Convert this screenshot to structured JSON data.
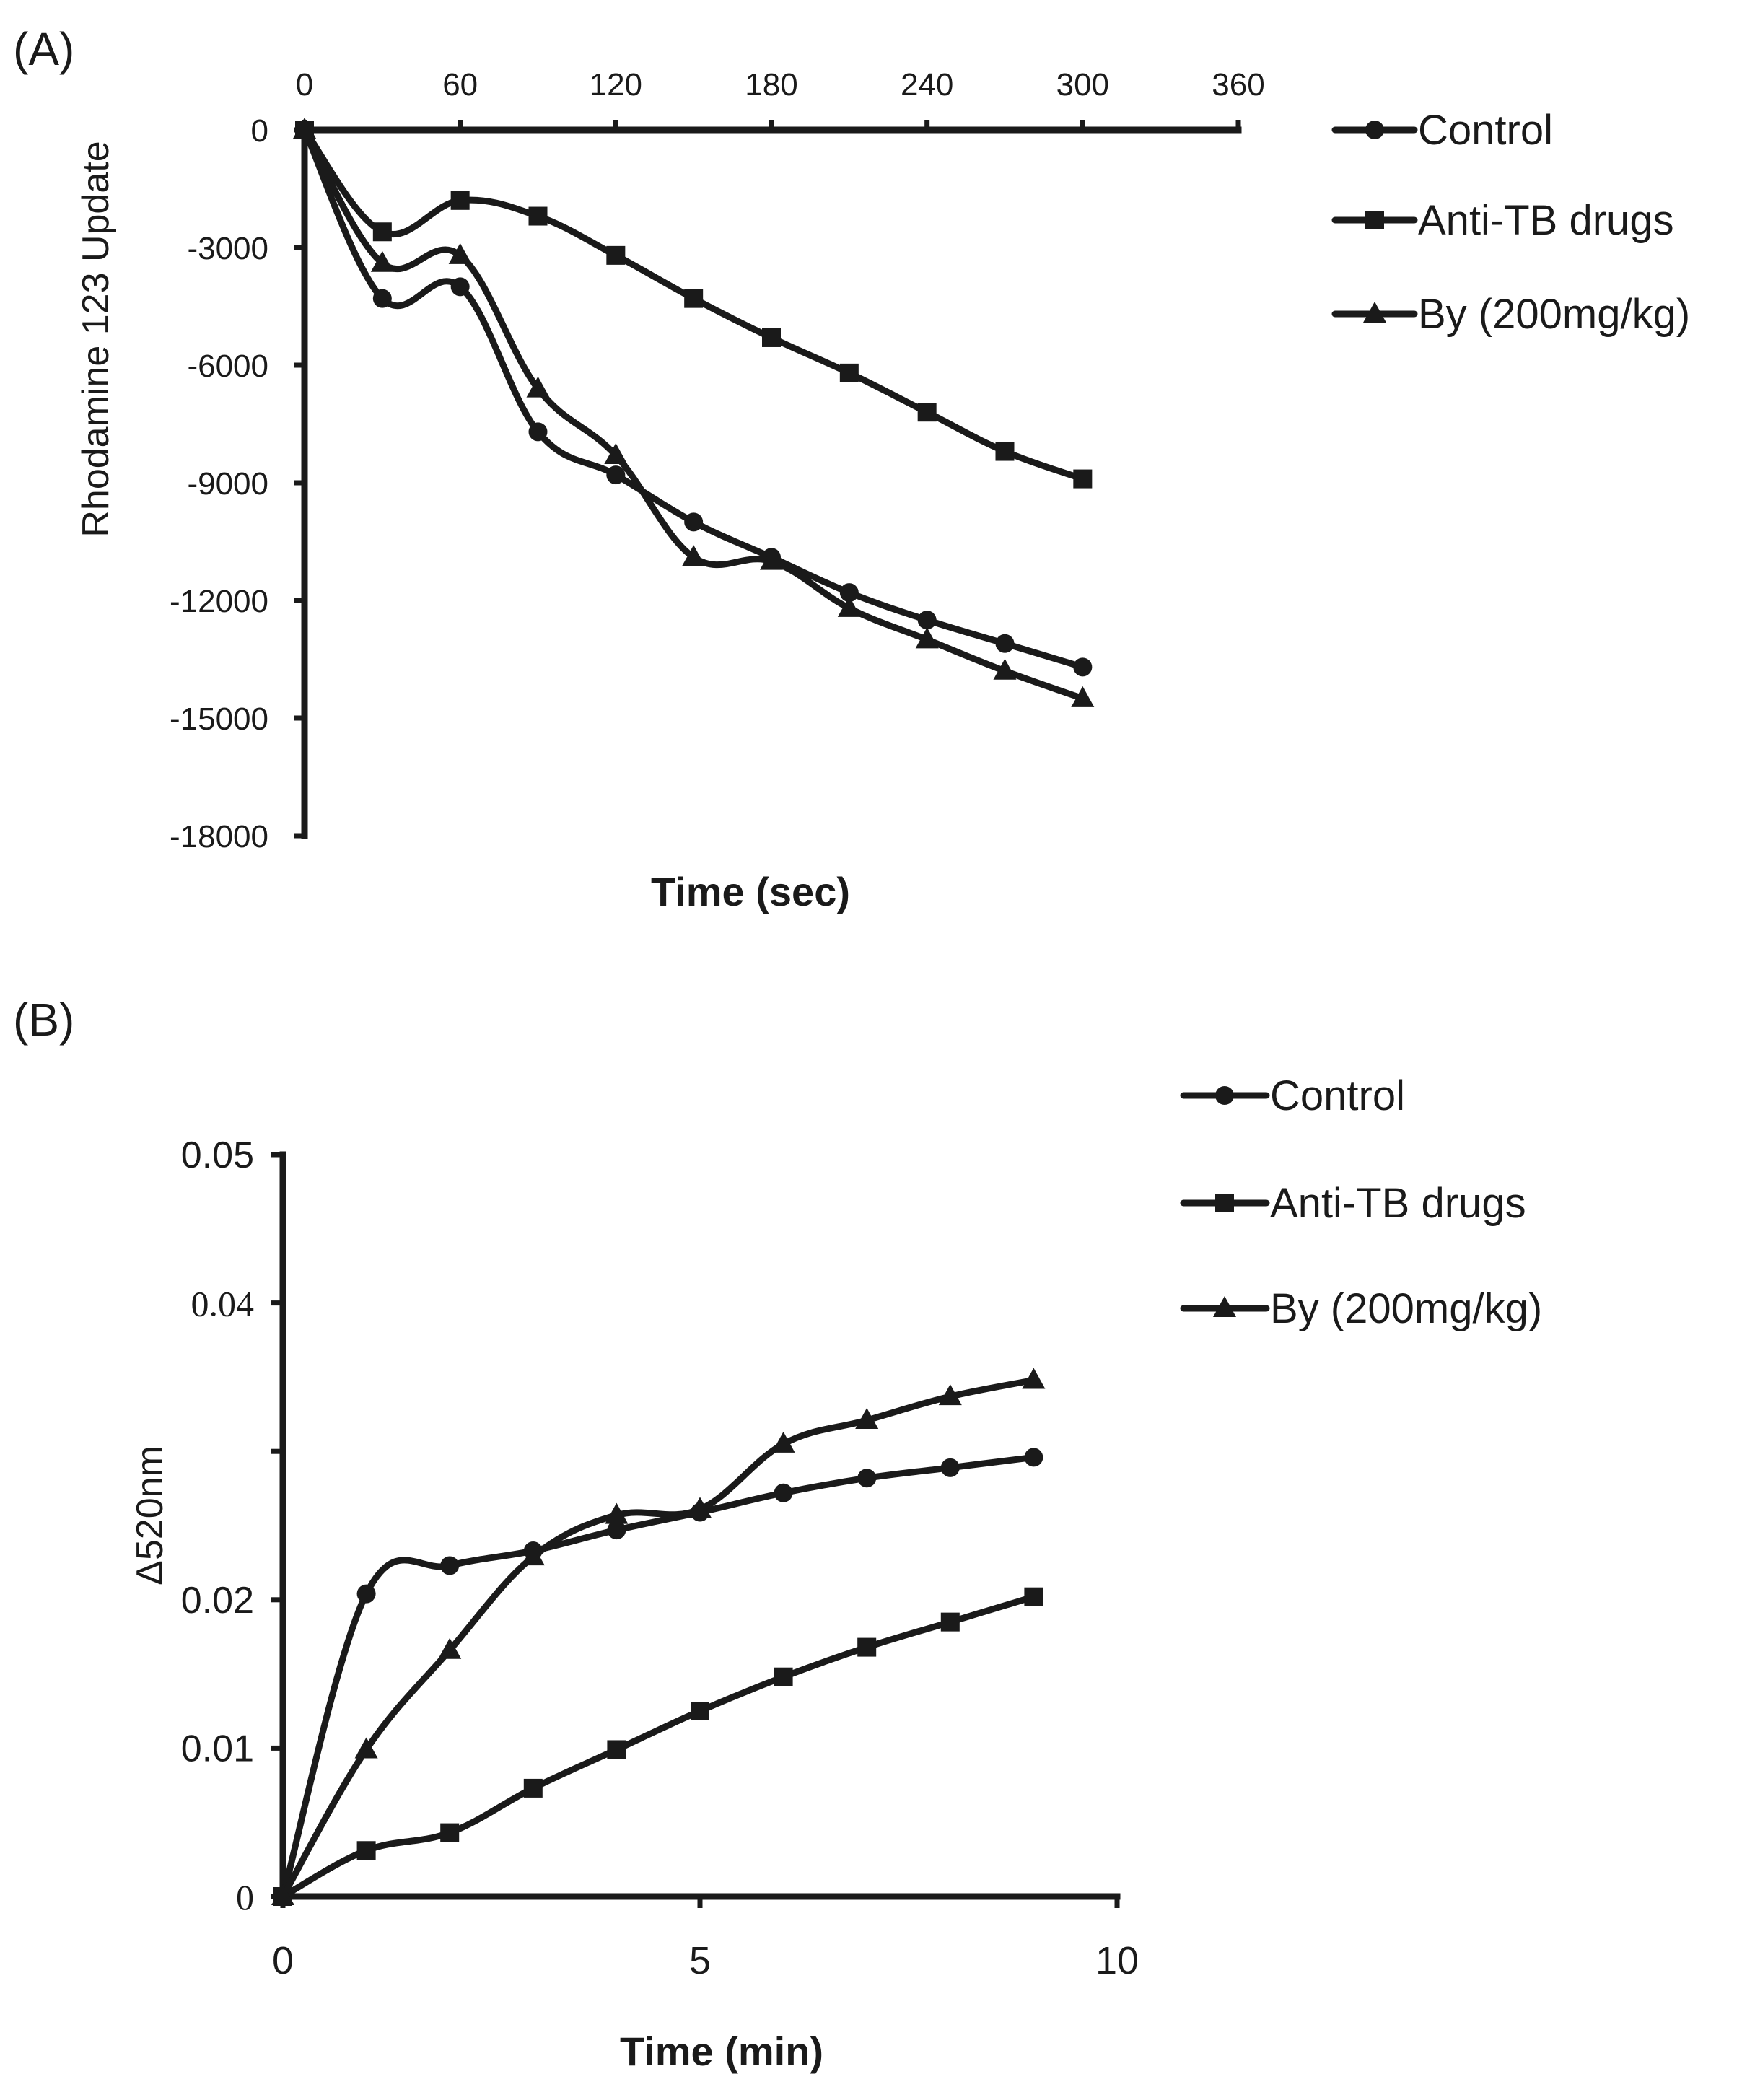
{
  "chart_data": [
    {
      "panel": "(A)",
      "type": "line",
      "xlabel": "Time (sec)",
      "ylabel": "Rhodamine 123 Update",
      "xlim": [
        0,
        360
      ],
      "ylim": [
        -18000,
        0
      ],
      "xticks": [
        0,
        60,
        120,
        180,
        240,
        300,
        360
      ],
      "yticks": [
        0,
        -3000,
        -6000,
        -9000,
        -12000,
        -15000,
        -18000
      ],
      "xtick_labels": [
        "0",
        "60",
        "120",
        "180",
        "240",
        "300",
        "360"
      ],
      "ytick_labels": [
        "0",
        "-3000",
        "-6000",
        "-9000",
        "-12000",
        "-15000",
        "-18000"
      ],
      "x_axis_position": "top",
      "legend": [
        "Control",
        "Anti-TB drugs",
        "By (200mg/kg)"
      ],
      "series": [
        {
          "name": "Control",
          "marker": "circle",
          "x": [
            0,
            30,
            60,
            90,
            120,
            150,
            180,
            210,
            240,
            270,
            300
          ],
          "y": [
            0,
            -4300,
            -4000,
            -7700,
            -8800,
            -10000,
            -10900,
            -11800,
            -12500,
            -13100,
            -13700
          ]
        },
        {
          "name": "Anti-TB drugs",
          "marker": "square",
          "x": [
            0,
            30,
            60,
            90,
            120,
            150,
            180,
            210,
            240,
            270,
            300
          ],
          "y": [
            0,
            -2600,
            -1800,
            -2200,
            -3200,
            -4300,
            -5300,
            -6200,
            -7200,
            -8200,
            -8900
          ]
        },
        {
          "name": "By (200mg/kg)",
          "marker": "triangle",
          "x": [
            0,
            30,
            60,
            90,
            120,
            150,
            180,
            210,
            240,
            270,
            300
          ],
          "y": [
            0,
            -3400,
            -3200,
            -6600,
            -8300,
            -10900,
            -11000,
            -12200,
            -13000,
            -13800,
            -14500
          ]
        }
      ]
    },
    {
      "panel": "(B)",
      "type": "line",
      "xlabel": "Time (min)",
      "ylabel": "Δ520nm",
      "xlim": [
        0,
        10
      ],
      "ylim": [
        0,
        0.05
      ],
      "xticks": [
        0,
        5,
        10
      ],
      "yticks": [
        0,
        0.01,
        0.02,
        0.03,
        0.04,
        0.05
      ],
      "xtick_labels": [
        "0",
        "5",
        "10"
      ],
      "ytick_labels": [
        "0",
        "0.01",
        "0.02",
        "",
        "0.04",
        "0.05"
      ],
      "legend": [
        "Control",
        "Anti-TB drugs",
        "By (200mg/kg)"
      ],
      "series": [
        {
          "name": "Control",
          "marker": "circle",
          "x": [
            0,
            1,
            2,
            3,
            4,
            5,
            6,
            7,
            8,
            9
          ],
          "y": [
            0,
            0.0204,
            0.0223,
            0.0233,
            0.0247,
            0.0259,
            0.0272,
            0.0282,
            0.0289,
            0.0296
          ]
        },
        {
          "name": "Anti-TB drugs",
          "marker": "square",
          "x": [
            0,
            1,
            2,
            3,
            4,
            5,
            6,
            7,
            8,
            9
          ],
          "y": [
            0,
            0.0031,
            0.0043,
            0.0073,
            0.0099,
            0.0125,
            0.0148,
            0.0168,
            0.0185,
            0.0202
          ]
        },
        {
          "name": "By (200mg/kg)",
          "marker": "triangle",
          "x": [
            0,
            1,
            2,
            3,
            4,
            5,
            6,
            7,
            8,
            9
          ],
          "y": [
            0,
            0.0099,
            0.0166,
            0.0229,
            0.0257,
            0.0261,
            0.0305,
            0.0321,
            0.0337,
            0.0348
          ]
        }
      ]
    }
  ]
}
